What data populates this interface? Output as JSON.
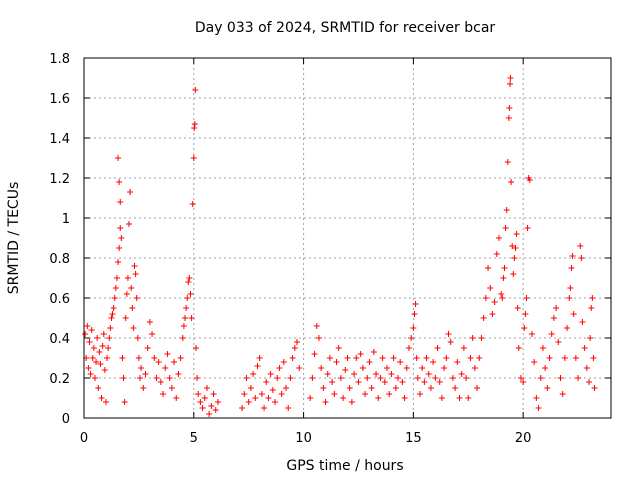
{
  "chart_data": {
    "type": "scatter",
    "title": "Day 033 of 2024, SRMTID for receiver bcar",
    "xlabel": "GPS time / hours",
    "ylabel": "SRMTID / TECUs",
    "xlim": [
      0,
      24
    ],
    "ylim": [
      0,
      1.8
    ],
    "xticks": [
      0,
      5,
      10,
      15,
      20
    ],
    "yticks": [
      0,
      0.2,
      0.4,
      0.6,
      0.8,
      1,
      1.2,
      1.4,
      1.6,
      1.8
    ],
    "xtick_labels": [
      "0",
      "5",
      "10",
      "15",
      "20"
    ],
    "ytick_labels": [
      "0",
      "0.2",
      "0.4",
      "0.6",
      "0.8",
      "1",
      "1.2",
      "1.4",
      "1.6",
      "1.8"
    ],
    "grid": true,
    "marker": "+",
    "marker_color": "#ff0000",
    "series": [
      {
        "name": "SRMTID",
        "points": [
          [
            0.05,
            0.42
          ],
          [
            0.1,
            0.3
          ],
          [
            0.15,
            0.46
          ],
          [
            0.2,
            0.25
          ],
          [
            0.25,
            0.38
          ],
          [
            0.3,
            0.22
          ],
          [
            0.35,
            0.44
          ],
          [
            0.4,
            0.3
          ],
          [
            0.45,
            0.35
          ],
          [
            0.5,
            0.2
          ],
          [
            0.55,
            0.28
          ],
          [
            0.6,
            0.4
          ],
          [
            0.65,
            0.15
          ],
          [
            0.7,
            0.33
          ],
          [
            0.75,
            0.27
          ],
          [
            0.8,
            0.1
          ],
          [
            0.85,
            0.36
          ],
          [
            0.9,
            0.42
          ],
          [
            0.95,
            0.24
          ],
          [
            1.0,
            0.08
          ],
          [
            1.05,
            0.3
          ],
          [
            1.1,
            0.35
          ],
          [
            1.15,
            0.4
          ],
          [
            1.2,
            0.45
          ],
          [
            1.25,
            0.5
          ],
          [
            1.3,
            0.52
          ],
          [
            1.35,
            0.55
          ],
          [
            1.4,
            0.6
          ],
          [
            1.45,
            0.65
          ],
          [
            1.5,
            0.7
          ],
          [
            1.55,
            0.78
          ],
          [
            1.6,
            0.85
          ],
          [
            1.65,
            0.95
          ],
          [
            1.55,
            1.3
          ],
          [
            1.6,
            1.18
          ],
          [
            1.65,
            1.08
          ],
          [
            1.7,
            0.9
          ],
          [
            1.75,
            0.3
          ],
          [
            1.8,
            0.2
          ],
          [
            1.85,
            0.08
          ],
          [
            1.9,
            0.5
          ],
          [
            1.95,
            0.62
          ],
          [
            2.0,
            0.7
          ],
          [
            2.05,
            0.97
          ],
          [
            2.1,
            1.13
          ],
          [
            2.15,
            0.65
          ],
          [
            2.2,
            0.55
          ],
          [
            2.25,
            0.45
          ],
          [
            2.3,
            0.76
          ],
          [
            2.35,
            0.72
          ],
          [
            2.4,
            0.6
          ],
          [
            2.45,
            0.4
          ],
          [
            2.5,
            0.3
          ],
          [
            2.55,
            0.2
          ],
          [
            2.6,
            0.25
          ],
          [
            2.7,
            0.15
          ],
          [
            2.8,
            0.22
          ],
          [
            2.9,
            0.35
          ],
          [
            3.0,
            0.48
          ],
          [
            3.1,
            0.42
          ],
          [
            3.2,
            0.3
          ],
          [
            3.3,
            0.2
          ],
          [
            3.4,
            0.28
          ],
          [
            3.5,
            0.18
          ],
          [
            3.6,
            0.12
          ],
          [
            3.7,
            0.25
          ],
          [
            3.8,
            0.32
          ],
          [
            3.9,
            0.2
          ],
          [
            4.0,
            0.15
          ],
          [
            4.1,
            0.28
          ],
          [
            4.2,
            0.1
          ],
          [
            4.3,
            0.22
          ],
          [
            4.4,
            0.3
          ],
          [
            4.5,
            0.4
          ],
          [
            4.55,
            0.46
          ],
          [
            4.6,
            0.5
          ],
          [
            4.65,
            0.55
          ],
          [
            4.7,
            0.6
          ],
          [
            4.75,
            0.68
          ],
          [
            4.8,
            0.7
          ],
          [
            4.85,
            0.62
          ],
          [
            4.9,
            0.5
          ],
          [
            4.95,
            1.07
          ],
          [
            5.0,
            1.3
          ],
          [
            5.02,
            1.45
          ],
          [
            5.05,
            1.47
          ],
          [
            5.07,
            1.64
          ],
          [
            5.1,
            0.35
          ],
          [
            5.15,
            0.2
          ],
          [
            5.2,
            0.12
          ],
          [
            5.3,
            0.08
          ],
          [
            5.4,
            0.05
          ],
          [
            5.5,
            0.1
          ],
          [
            5.6,
            0.15
          ],
          [
            5.7,
            0.02
          ],
          [
            5.8,
            0.06
          ],
          [
            5.9,
            0.12
          ],
          [
            6.0,
            0.04
          ],
          [
            6.1,
            0.08
          ],
          [
            7.2,
            0.05
          ],
          [
            7.3,
            0.12
          ],
          [
            7.4,
            0.2
          ],
          [
            7.5,
            0.08
          ],
          [
            7.6,
            0.15
          ],
          [
            7.7,
            0.22
          ],
          [
            7.8,
            0.1
          ],
          [
            7.9,
            0.26
          ],
          [
            8.0,
            0.3
          ],
          [
            8.1,
            0.12
          ],
          [
            8.2,
            0.05
          ],
          [
            8.3,
            0.18
          ],
          [
            8.4,
            0.1
          ],
          [
            8.5,
            0.22
          ],
          [
            8.6,
            0.14
          ],
          [
            8.7,
            0.08
          ],
          [
            8.8,
            0.2
          ],
          [
            8.9,
            0.25
          ],
          [
            9.0,
            0.12
          ],
          [
            9.1,
            0.28
          ],
          [
            9.2,
            0.15
          ],
          [
            9.3,
            0.05
          ],
          [
            9.4,
            0.2
          ],
          [
            9.5,
            0.3
          ],
          [
            9.6,
            0.35
          ],
          [
            9.7,
            0.38
          ],
          [
            9.8,
            0.25
          ],
          [
            10.3,
            0.1
          ],
          [
            10.4,
            0.2
          ],
          [
            10.5,
            0.32
          ],
          [
            10.6,
            0.46
          ],
          [
            10.7,
            0.4
          ],
          [
            10.8,
            0.25
          ],
          [
            10.9,
            0.15
          ],
          [
            11.0,
            0.08
          ],
          [
            11.1,
            0.22
          ],
          [
            11.2,
            0.3
          ],
          [
            11.3,
            0.18
          ],
          [
            11.4,
            0.12
          ],
          [
            11.5,
            0.28
          ],
          [
            11.6,
            0.35
          ],
          [
            11.7,
            0.2
          ],
          [
            11.8,
            0.1
          ],
          [
            11.9,
            0.24
          ],
          [
            12.0,
            0.3
          ],
          [
            12.1,
            0.15
          ],
          [
            12.2,
            0.08
          ],
          [
            12.3,
            0.22
          ],
          [
            12.4,
            0.3
          ],
          [
            12.5,
            0.18
          ],
          [
            12.6,
            0.32
          ],
          [
            12.7,
            0.25
          ],
          [
            12.8,
            0.12
          ],
          [
            12.9,
            0.2
          ],
          [
            13.0,
            0.28
          ],
          [
            13.1,
            0.15
          ],
          [
            13.2,
            0.33
          ],
          [
            13.3,
            0.22
          ],
          [
            13.4,
            0.1
          ],
          [
            13.5,
            0.2
          ],
          [
            13.6,
            0.3
          ],
          [
            13.7,
            0.18
          ],
          [
            13.8,
            0.25
          ],
          [
            13.9,
            0.12
          ],
          [
            14.0,
            0.22
          ],
          [
            14.1,
            0.3
          ],
          [
            14.2,
            0.15
          ],
          [
            14.3,
            0.2
          ],
          [
            14.4,
            0.28
          ],
          [
            14.5,
            0.18
          ],
          [
            14.6,
            0.1
          ],
          [
            14.7,
            0.25
          ],
          [
            14.8,
            0.35
          ],
          [
            14.9,
            0.4
          ],
          [
            15.0,
            0.45
          ],
          [
            15.05,
            0.52
          ],
          [
            15.1,
            0.57
          ],
          [
            15.15,
            0.3
          ],
          [
            15.2,
            0.2
          ],
          [
            15.3,
            0.12
          ],
          [
            15.4,
            0.25
          ],
          [
            15.5,
            0.18
          ],
          [
            15.6,
            0.3
          ],
          [
            15.7,
            0.22
          ],
          [
            15.8,
            0.15
          ],
          [
            15.9,
            0.28
          ],
          [
            16.0,
            0.2
          ],
          [
            16.1,
            0.35
          ],
          [
            16.2,
            0.18
          ],
          [
            16.3,
            0.1
          ],
          [
            16.4,
            0.25
          ],
          [
            16.5,
            0.3
          ],
          [
            16.6,
            0.42
          ],
          [
            16.7,
            0.38
          ],
          [
            16.8,
            0.2
          ],
          [
            16.9,
            0.15
          ],
          [
            17.0,
            0.28
          ],
          [
            17.1,
            0.1
          ],
          [
            17.2,
            0.22
          ],
          [
            17.3,
            0.35
          ],
          [
            17.4,
            0.2
          ],
          [
            17.5,
            0.1
          ],
          [
            17.6,
            0.3
          ],
          [
            17.7,
            0.4
          ],
          [
            17.8,
            0.25
          ],
          [
            17.9,
            0.15
          ],
          [
            18.0,
            0.3
          ],
          [
            18.1,
            0.4
          ],
          [
            18.2,
            0.5
          ],
          [
            18.3,
            0.6
          ],
          [
            18.4,
            0.75
          ],
          [
            18.5,
            0.65
          ],
          [
            18.6,
            0.52
          ],
          [
            18.7,
            0.58
          ],
          [
            18.8,
            0.82
          ],
          [
            18.9,
            0.9
          ],
          [
            19.0,
            0.62
          ],
          [
            19.05,
            0.6
          ],
          [
            19.1,
            0.7
          ],
          [
            19.15,
            0.75
          ],
          [
            19.2,
            0.95
          ],
          [
            19.25,
            1.04
          ],
          [
            19.3,
            1.28
          ],
          [
            19.35,
            1.5
          ],
          [
            19.37,
            1.55
          ],
          [
            19.4,
            1.67
          ],
          [
            19.42,
            1.7
          ],
          [
            19.45,
            1.18
          ],
          [
            19.5,
            0.86
          ],
          [
            19.55,
            0.72
          ],
          [
            19.6,
            0.8
          ],
          [
            19.65,
            0.85
          ],
          [
            19.7,
            0.92
          ],
          [
            19.75,
            0.55
          ],
          [
            19.8,
            0.35
          ],
          [
            19.9,
            0.2
          ],
          [
            20.0,
            0.18
          ],
          [
            20.05,
            0.45
          ],
          [
            20.1,
            0.52
          ],
          [
            20.15,
            0.6
          ],
          [
            20.2,
            0.95
          ],
          [
            20.25,
            1.2
          ],
          [
            20.3,
            1.19
          ],
          [
            20.4,
            0.42
          ],
          [
            20.5,
            0.28
          ],
          [
            20.6,
            0.1
          ],
          [
            20.7,
            0.05
          ],
          [
            20.8,
            0.2
          ],
          [
            20.9,
            0.35
          ],
          [
            21.0,
            0.25
          ],
          [
            21.1,
            0.15
          ],
          [
            21.2,
            0.3
          ],
          [
            21.3,
            0.42
          ],
          [
            21.4,
            0.5
          ],
          [
            21.5,
            0.55
          ],
          [
            21.6,
            0.38
          ],
          [
            21.7,
            0.2
          ],
          [
            21.8,
            0.12
          ],
          [
            21.9,
            0.3
          ],
          [
            22.0,
            0.45
          ],
          [
            22.1,
            0.6
          ],
          [
            22.15,
            0.65
          ],
          [
            22.2,
            0.75
          ],
          [
            22.25,
            0.81
          ],
          [
            22.3,
            0.52
          ],
          [
            22.4,
            0.3
          ],
          [
            22.5,
            0.2
          ],
          [
            22.6,
            0.86
          ],
          [
            22.65,
            0.8
          ],
          [
            22.7,
            0.48
          ],
          [
            22.8,
            0.35
          ],
          [
            22.9,
            0.25
          ],
          [
            23.0,
            0.18
          ],
          [
            23.05,
            0.4
          ],
          [
            23.1,
            0.55
          ],
          [
            23.15,
            0.6
          ],
          [
            23.2,
            0.3
          ],
          [
            23.25,
            0.15
          ]
        ]
      }
    ]
  }
}
